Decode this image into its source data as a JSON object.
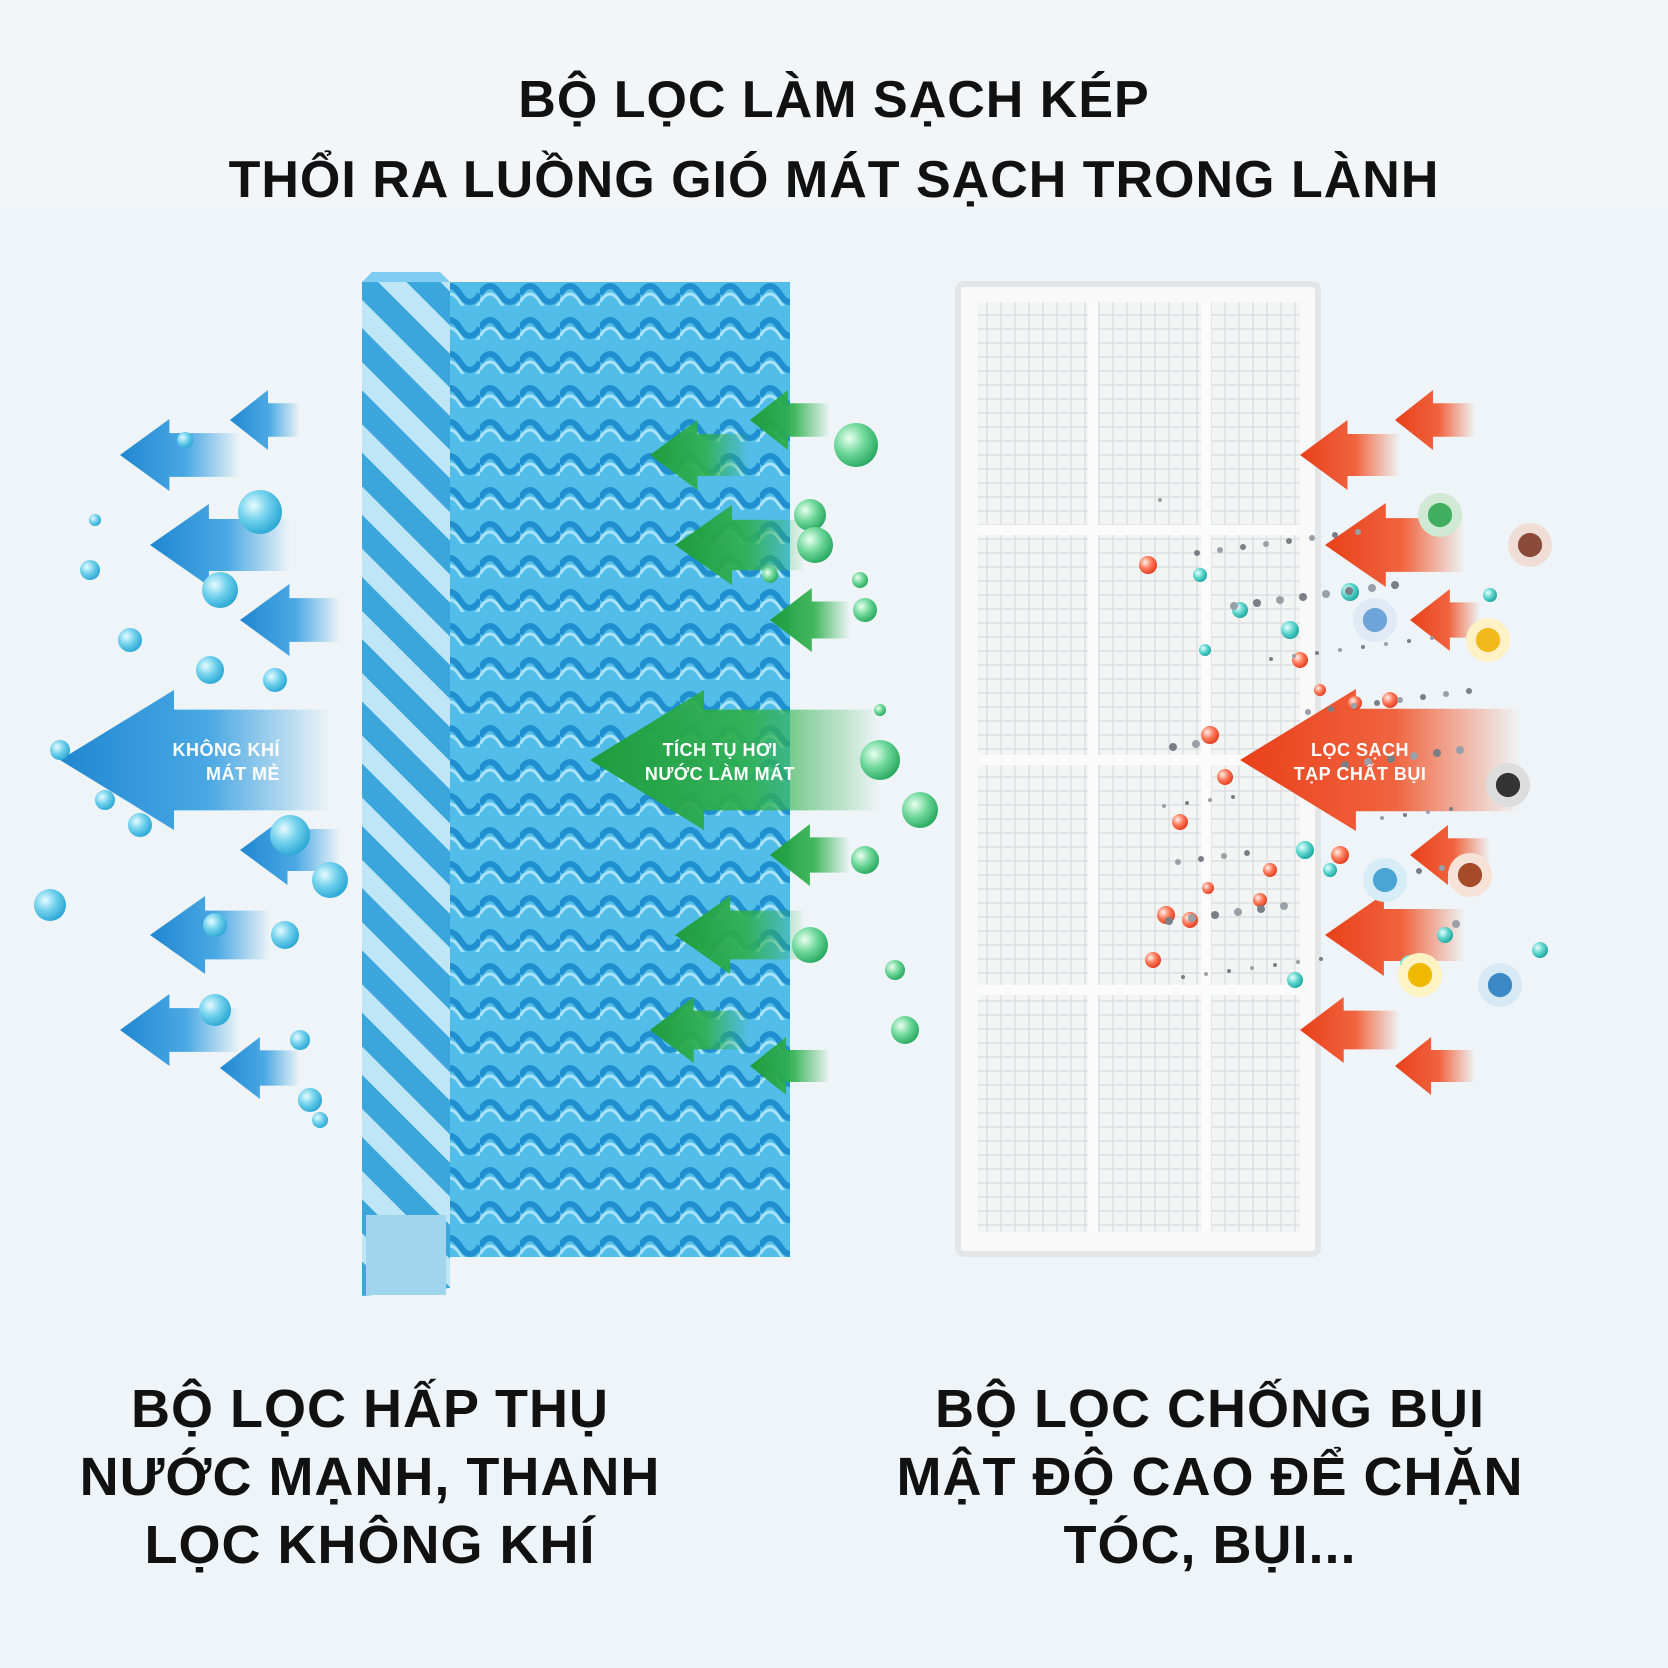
{
  "title": {
    "line1": "BỘ LỌC LÀM SẠCH KÉP",
    "line2": "THỔI RA LUỒNG GIÓ MÁT SẠCH TRONG LÀNH"
  },
  "labels": {
    "blue_arrow": [
      "KHÔNG KHÍ",
      "MÁT MẺ"
    ],
    "green_arrow": [
      "TÍCH TỤ HƠI",
      "NƯỚC LÀM MÁT"
    ],
    "red_arrow": [
      "LỌC SẠCH",
      "TẠP CHẤT BỤI"
    ]
  },
  "captions": {
    "left": [
      "BỘ LỌC HẤP THỤ",
      "NƯỚC MẠNH, THANH",
      "LỌC KHÔNG KHÍ"
    ],
    "right": [
      "BỘ LỌC CHỐNG BỤI",
      "MẬT ĐỘ CAO ĐỂ CHẶN",
      "TÓC, BỤI..."
    ]
  },
  "colors": {
    "blue_accent": "#1f8fd6",
    "green_accent": "#2aa84a",
    "red_accent": "#f04a22",
    "pad_blue": "#4bb4e6",
    "filter_frame": "#f7f7f7"
  }
}
